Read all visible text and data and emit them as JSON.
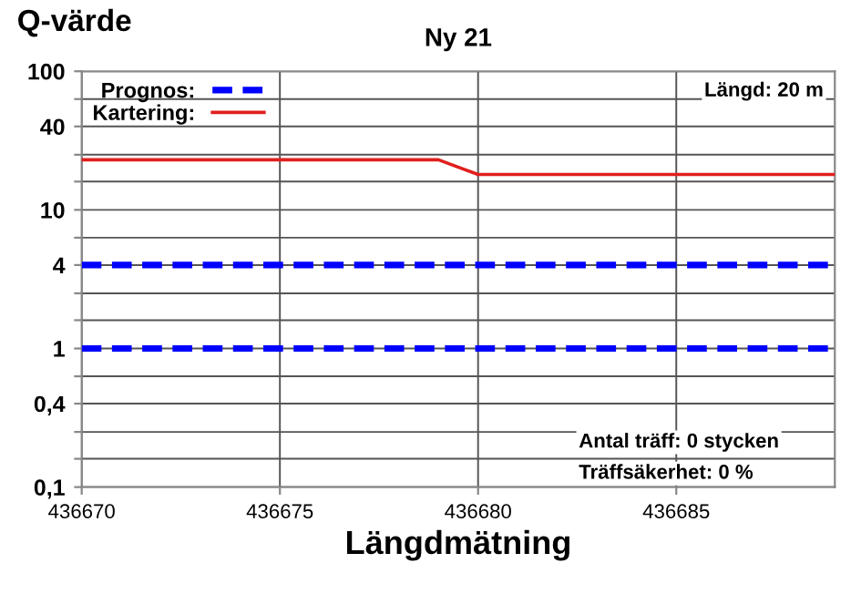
{
  "chart_data": {
    "type": "line",
    "title": "Ny 21",
    "ylabel": "Q-värde",
    "xlabel": "Längdmätning",
    "log": "y",
    "grid": true,
    "legend": "top left",
    "marker": "none",
    "xlim": [
      436670,
      436689
    ],
    "xticks": [
      436670,
      436675,
      436680,
      436685
    ],
    "ylim": [
      0.1,
      100
    ],
    "yticks": [
      {
        "value": 0.1,
        "label": "0,1"
      },
      {
        "value": 0.16,
        "label": null
      },
      {
        "value": 0.25,
        "label": null
      },
      {
        "value": 0.4,
        "label": "0,4"
      },
      {
        "value": 0.63,
        "label": null
      },
      {
        "value": 1,
        "label": "1"
      },
      {
        "value": 1.6,
        "label": null
      },
      {
        "value": 2.5,
        "label": null
      },
      {
        "value": 4,
        "label": "4"
      },
      {
        "value": 6.3,
        "label": null
      },
      {
        "value": 10,
        "label": "10"
      },
      {
        "value": 16,
        "label": null
      },
      {
        "value": 25,
        "label": null
      },
      {
        "value": 40,
        "label": "40"
      },
      {
        "value": 63,
        "label": null
      },
      {
        "value": 100,
        "label": "100"
      }
    ],
    "series": [
      {
        "name": "Prognos:",
        "color": "#0000ff",
        "line_style": "dashed",
        "x": [
          436670,
          436689
        ],
        "values": [
          4,
          4
        ]
      },
      {
        "color": "#0000ff",
        "line_style": "dashed",
        "x": [
          436670,
          436689
        ],
        "values": [
          1,
          1
        ]
      },
      {
        "name": "Kartering:",
        "color": "#e0201e",
        "line_style": "solid",
        "x": [
          436670,
          436679,
          436680,
          436689
        ],
        "values": [
          23,
          23,
          18,
          18
        ]
      }
    ],
    "annotations": [
      "Längd: 20 m",
      "Antal träff: 0 stycken",
      "Träffsäkerhet: 0 %"
    ]
  }
}
